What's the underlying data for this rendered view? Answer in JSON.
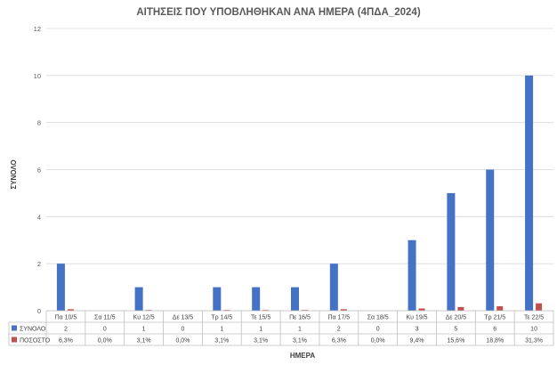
{
  "chart_data": {
    "type": "bar",
    "title": "ΑΙΤΗΣΕΙΣ ΠΟΥ ΥΠΟΒΛΗΘΗΚΑΝ ΑΝΑ ΗΜΕΡΑ (4ΠΔΑ_2024)",
    "xlabel": "ΗΜΕΡΑ",
    "ylabel": "ΣΥΝΟΛΟ",
    "ylim": [
      0,
      12
    ],
    "yticks": [
      "0",
      "2",
      "4",
      "6",
      "8",
      "10",
      "12"
    ],
    "grid": true,
    "legend": "data-table",
    "categories": [
      "Πα 10/5",
      "Σα 11/5",
      "Κυ 12/5",
      "Δε 13/5",
      "Τρ 14/5",
      "Τε 15/5",
      "Πε 16/5",
      "Πα 17/5",
      "Σα 18/5",
      "Κυ 19/5",
      "Δε 20/5",
      "Τρ 21/5",
      "Τε 22/5"
    ],
    "series": [
      {
        "name": "ΣΥΝΟΛΟ",
        "color": "#4472C4",
        "values": [
          2,
          0,
          1,
          0,
          1,
          1,
          1,
          2,
          0,
          3,
          5,
          6,
          10
        ],
        "labels": [
          "2",
          "0",
          "1",
          "0",
          "1",
          "1",
          "1",
          "2",
          "0",
          "3",
          "5",
          "6",
          "10"
        ]
      },
      {
        "name": "ΠΟΣΟΣΤΟ",
        "color": "#C0504D",
        "values": [
          0.063,
          0.0,
          0.031,
          0.0,
          0.031,
          0.031,
          0.031,
          0.063,
          0.0,
          0.094,
          0.156,
          0.188,
          0.313
        ],
        "labels": [
          "6,3%",
          "0,0%",
          "3,1%",
          "0,0%",
          "3,1%",
          "3,1%",
          "3,1%",
          "6,3%",
          "0,0%",
          "9,4%",
          "15,6%",
          "18,8%",
          "31,3%"
        ]
      }
    ]
  }
}
